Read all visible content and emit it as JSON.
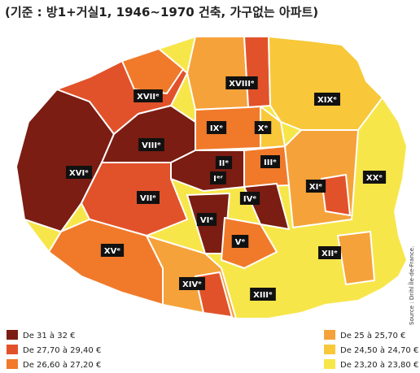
{
  "title": "(기준 : 방1+거실1, 1946~1970 건축, 가구없는 아파트)",
  "districts": [
    "XVIIᵉ",
    "XVIIIᵉ",
    "XIXᵉ",
    "IXᵉ",
    "Xᵉ",
    "VIIIᵉ",
    "IIᵉ",
    "Iᵉʳ",
    "IIIᵉ",
    "XIᵉ",
    "XXᵉ",
    "XVIᵉ",
    "VIIᵉ",
    "IVᵉ",
    "VIᵉ",
    "Vᵉ",
    "XVᵉ",
    "XIIᵉ",
    "XIVᵉ",
    "XIIIᵉ"
  ],
  "legend": [
    {
      "label": "De 31 à 32 €",
      "color": "#7b1d12"
    },
    {
      "label": "De 27,70 à 29,40 €",
      "color": "#e2522a"
    },
    {
      "label": "De 26,60 à 27,20 €",
      "color": "#f07a2a"
    },
    {
      "label": "De 25 à 25,70 €",
      "color": "#f5a23a"
    },
    {
      "label": "De 24,50 à 24,70 €",
      "color": "#f8c83a"
    },
    {
      "label": "De 23,20 à 23,80 €",
      "color": "#f7e64a"
    }
  ],
  "source": "Source : Drihl Île-de-France."
}
